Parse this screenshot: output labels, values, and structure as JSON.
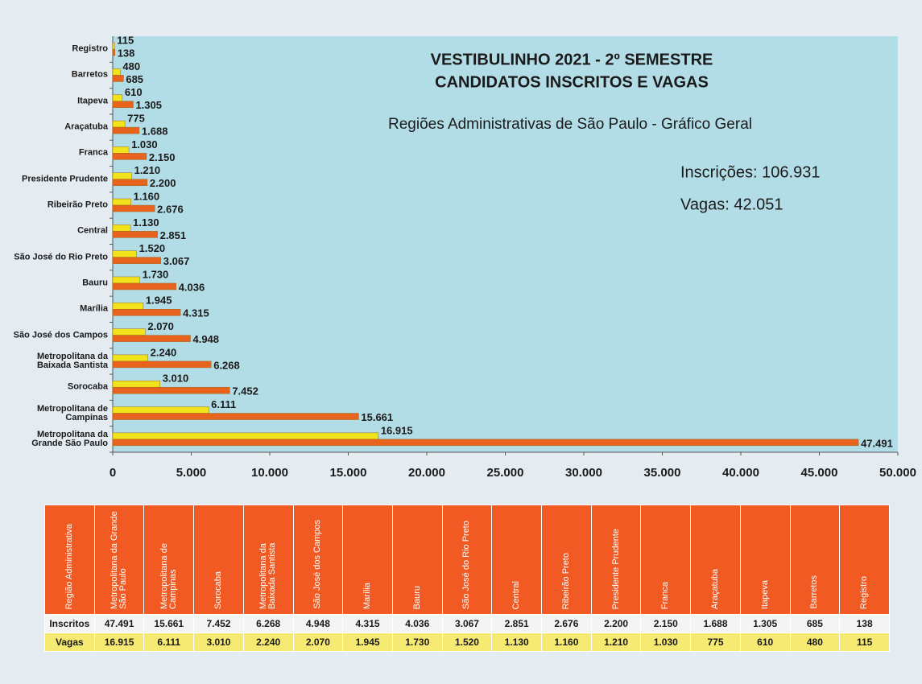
{
  "chart_data": {
    "type": "bar",
    "orientation": "horizontal",
    "title": "VESTIBULINHO 2021 - 2º SEMESTRE",
    "subtitle": "CANDIDATOS INSCRITOS E VAGAS",
    "annotations": [
      "Regiões Administrativas de São Paulo - Gráfico Geral",
      "Inscrições: 106.931",
      "Vagas: 42.051"
    ],
    "categories": [
      "Metropolitana da Grande São Paulo",
      "Metropolitana de Campinas",
      "Sorocaba",
      "Metropolitana da Baixada Santista",
      "São José dos Campos",
      "Marília",
      "Bauru",
      "São José do Rio Preto",
      "Central",
      "Ribeirão Preto",
      "Presidente Prudente",
      "Franca",
      "Araçatuba",
      "Itapeva",
      "Barretos",
      "Registro"
    ],
    "series": [
      {
        "color": "#f2e41c",
        "values": [
          16915,
          6111,
          3010,
          2240,
          2070,
          1945,
          1730,
          1520,
          1130,
          1160,
          1210,
          1030,
          775,
          610,
          480,
          115
        ],
        "value_labels": [
          "16.915",
          "6.111",
          "3.010",
          "2.240",
          "2.070",
          "1.945",
          "1.730",
          "1.520",
          "1.130",
          "1.160",
          "1.210",
          "1.030",
          "775",
          "610",
          "480",
          "115"
        ]
      },
      {
        "color": "#e8641e",
        "values": [
          47491,
          15661,
          7452,
          6268,
          4948,
          4315,
          4036,
          3067,
          2851,
          2676,
          2200,
          2150,
          1688,
          1305,
          685,
          138
        ],
        "value_labels": [
          "47.491",
          "15.661",
          "7.452",
          "6.268",
          "4.948",
          "4.315",
          "4.036",
          "3.067",
          "2.851",
          "2.676",
          "2.200",
          "2.150",
          "1.688",
          "1.305",
          "685",
          "138"
        ]
      }
    ],
    "xlim": [
      0,
      50000
    ],
    "xticks": [
      0,
      {
        "value": 5000,
        "label": "5.000"
      },
      {
        "value": 10000,
        "label": "10.000"
      },
      {
        "value": 15000,
        "label": "15.000"
      },
      {
        "value": 20000,
        "label": "20.000"
      },
      {
        "value": 25000,
        "label": "25.000"
      },
      {
        "value": 30000,
        "label": "30.000"
      },
      {
        "value": 35000,
        "label": "35.000"
      },
      {
        "value": 40000,
        "label": "40.000"
      },
      {
        "value": 45000,
        "label": "45.000"
      },
      {
        "value": 50000,
        "label": "50.000"
      }
    ],
    "grid": false,
    "plot_background": "#b3dde6"
  },
  "table": {
    "header": [
      "Região Administrativa",
      "Metropolitana da Grande São Paulo",
      "Metropolitana de Campinas",
      "Sorocaba",
      "Metropolitana da Baixada Santista",
      "São José dos Campos",
      "Marília",
      "Bauru",
      "São José do Rio Preto",
      "Central",
      "Ribeirão Preto",
      "Presidente Prudente",
      "Franca",
      "Araçatuba",
      "Itapeva",
      "Barretos",
      "Registro"
    ],
    "rows": [
      [
        "Inscritos",
        "47.491",
        "15.661",
        "7.452",
        "6.268",
        "4.948",
        "4.315",
        "4.036",
        "3.067",
        "2.851",
        "2.676",
        "2.200",
        "2.150",
        "1.688",
        "1.305",
        "685",
        "138"
      ],
      [
        "Vagas",
        "16.915",
        "6.111",
        "3.010",
        "2.240",
        "2.070",
        "1.945",
        "1.730",
        "1.520",
        "1.130",
        "1.160",
        "1.210",
        "1.030",
        "775",
        "610",
        "480",
        "115"
      ]
    ]
  }
}
